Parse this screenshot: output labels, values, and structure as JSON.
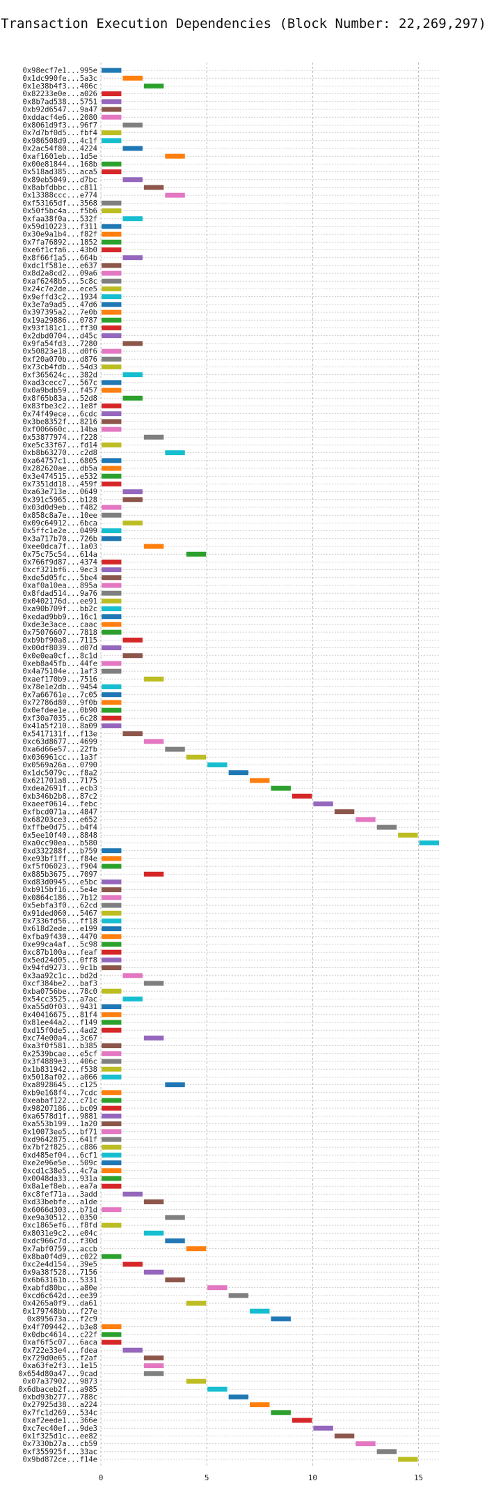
{
  "chart_data": {
    "type": "bar",
    "orientation": "horizontal-gantt",
    "title": "Transaction Execution Dependencies (Block Number: 22,269,297)",
    "xlabel": "",
    "ylabel": "",
    "xlim": [
      0,
      16
    ],
    "xticks": [
      0,
      5,
      10,
      15
    ],
    "grid": true,
    "colors": [
      "#1f77b4",
      "#ff7f0e",
      "#2ca02c",
      "#d62728",
      "#9467bd",
      "#8c564b",
      "#e377c2",
      "#7f7f7f",
      "#bcbd22",
      "#17becf"
    ],
    "rows": [
      {
        "label": "0x98ecf7e1...995e",
        "start": 0,
        "duration": 1
      },
      {
        "label": "0x1dc990fe...5a3c",
        "start": 1,
        "duration": 1
      },
      {
        "label": "0x1e38b4f3...406c",
        "start": 2,
        "duration": 1
      },
      {
        "label": "0x82233e0e...a026",
        "start": 0,
        "duration": 1
      },
      {
        "label": "0x8b7ad538...5751",
        "start": 0,
        "duration": 1
      },
      {
        "label": "0xb92d6547...9a47",
        "start": 0,
        "duration": 1
      },
      {
        "label": "0xddacf4e6...2080",
        "start": 0,
        "duration": 1
      },
      {
        "label": "0x8061d9f3...96f7",
        "start": 1,
        "duration": 1
      },
      {
        "label": "0x7d7bf0d5...fbf4",
        "start": 0,
        "duration": 1
      },
      {
        "label": "0x986508d9...4c1f",
        "start": 0,
        "duration": 1
      },
      {
        "label": "0x2ac54f80...4224",
        "start": 1,
        "duration": 1
      },
      {
        "label": "0xaf1601eb...1d5e",
        "start": 3,
        "duration": 1
      },
      {
        "label": "0x00e81844...168b",
        "start": 0,
        "duration": 1
      },
      {
        "label": "0x518ad385...aca5",
        "start": 0,
        "duration": 1
      },
      {
        "label": "0x89eb5049...d7bc",
        "start": 1,
        "duration": 1
      },
      {
        "label": "0x8abfdbbc...c811",
        "start": 2,
        "duration": 1
      },
      {
        "label": "0x13388ccc...e774",
        "start": 3,
        "duration": 1
      },
      {
        "label": "0xf53165df...3568",
        "start": 0,
        "duration": 1
      },
      {
        "label": "0x50f5bc4a...f5b6",
        "start": 0,
        "duration": 1
      },
      {
        "label": "0xfaa38f0a...532f",
        "start": 1,
        "duration": 1
      },
      {
        "label": "0x59d10223...f311",
        "start": 0,
        "duration": 1
      },
      {
        "label": "0x30e9a1b4...f82f",
        "start": 0,
        "duration": 1
      },
      {
        "label": "0x7fa76892...1852",
        "start": 0,
        "duration": 1
      },
      {
        "label": "0xe6f1cfa6...43b0",
        "start": 0,
        "duration": 1
      },
      {
        "label": "0x8f66f1a5...664b",
        "start": 1,
        "duration": 1
      },
      {
        "label": "0xdc1f581e...e637",
        "start": 0,
        "duration": 1
      },
      {
        "label": "0x8d2a8cd2...09a6",
        "start": 0,
        "duration": 1
      },
      {
        "label": "0xaf6248b5...5c8c",
        "start": 0,
        "duration": 1
      },
      {
        "label": "0x24c7e2de...ece5",
        "start": 0,
        "duration": 1
      },
      {
        "label": "0x9effd3c2...1934",
        "start": 0,
        "duration": 1
      },
      {
        "label": "0x3e7a9ad5...47d6",
        "start": 0,
        "duration": 1
      },
      {
        "label": "0x397395a2...7e0b",
        "start": 0,
        "duration": 1
      },
      {
        "label": "0x19a29886...0787",
        "start": 0,
        "duration": 1
      },
      {
        "label": "0x93f181c1...ff30",
        "start": 0,
        "duration": 1
      },
      {
        "label": "0x2dbd0704...d45c",
        "start": 0,
        "duration": 1
      },
      {
        "label": "0x9fa54fd3...7280",
        "start": 1,
        "duration": 1
      },
      {
        "label": "0x50823e18...d0f6",
        "start": 0,
        "duration": 1
      },
      {
        "label": "0xf20a070b...d876",
        "start": 0,
        "duration": 1
      },
      {
        "label": "0x73cb4fdb...54d3",
        "start": 0,
        "duration": 1
      },
      {
        "label": "0xf365624c...382d",
        "start": 1,
        "duration": 1
      },
      {
        "label": "0xad3cecc7...567c",
        "start": 0,
        "duration": 1
      },
      {
        "label": "0x0a9bdb59...f457",
        "start": 0,
        "duration": 1
      },
      {
        "label": "0x8f65b83a...52d8",
        "start": 1,
        "duration": 1
      },
      {
        "label": "0x83fbe3c2...1e8f",
        "start": 0,
        "duration": 1
      },
      {
        "label": "0x74f49ece...6cdc",
        "start": 0,
        "duration": 1
      },
      {
        "label": "0x3be8352f...8216",
        "start": 0,
        "duration": 1
      },
      {
        "label": "0xf006660c...14ba",
        "start": 0,
        "duration": 1
      },
      {
        "label": "0x53877974...f228",
        "start": 2,
        "duration": 1
      },
      {
        "label": "0xe5c33f67...fd14",
        "start": 0,
        "duration": 1
      },
      {
        "label": "0xb8b63270...c2d8",
        "start": 3,
        "duration": 1
      },
      {
        "label": "0xa64757c1...6805",
        "start": 0,
        "duration": 1
      },
      {
        "label": "0x282620ae...db5a",
        "start": 0,
        "duration": 1
      },
      {
        "label": "0x3e474515...e532",
        "start": 0,
        "duration": 1
      },
      {
        "label": "0x7351dd18...459f",
        "start": 0,
        "duration": 1
      },
      {
        "label": "0xa63e713e...0649",
        "start": 1,
        "duration": 1
      },
      {
        "label": "0x391c5965...b128",
        "start": 1,
        "duration": 1
      },
      {
        "label": "0x03d0d9eb...f482",
        "start": 0,
        "duration": 1
      },
      {
        "label": "0x858c8a7e...10ee",
        "start": 0,
        "duration": 1
      },
      {
        "label": "0x09c64912...6bca",
        "start": 1,
        "duration": 1
      },
      {
        "label": "0x5ffc1e2e...0499",
        "start": 0,
        "duration": 1
      },
      {
        "label": "0x3a717b70...726b",
        "start": 0,
        "duration": 1
      },
      {
        "label": "0xee0dca7f...1a03",
        "start": 2,
        "duration": 1
      },
      {
        "label": "0x75c75c54...614a",
        "start": 4,
        "duration": 1
      },
      {
        "label": "0x766f9d87...4374",
        "start": 0,
        "duration": 1
      },
      {
        "label": "0xcf321bf6...9ec3",
        "start": 0,
        "duration": 1
      },
      {
        "label": "0xde5d05fc...5be4",
        "start": 0,
        "duration": 1
      },
      {
        "label": "0xaf0a10ea...895a",
        "start": 0,
        "duration": 1
      },
      {
        "label": "0x8fdad514...9a76",
        "start": 0,
        "duration": 1
      },
      {
        "label": "0x0402176d...ee91",
        "start": 0,
        "duration": 1
      },
      {
        "label": "0xa90b709f...bb2c",
        "start": 0,
        "duration": 1
      },
      {
        "label": "0xedad9bb9...16c1",
        "start": 0,
        "duration": 1
      },
      {
        "label": "0xde3e3ace...caac",
        "start": 0,
        "duration": 1
      },
      {
        "label": "0x75076607...7818",
        "start": 0,
        "duration": 1
      },
      {
        "label": "0xb9bf90a8...7115",
        "start": 1,
        "duration": 1
      },
      {
        "label": "0x00df8039...d07d",
        "start": 0,
        "duration": 1
      },
      {
        "label": "0x0e0ea0cf...8c1d",
        "start": 1,
        "duration": 1
      },
      {
        "label": "0xeb8a45fb...44fe",
        "start": 0,
        "duration": 1
      },
      {
        "label": "0x4a75104e...1af3",
        "start": 0,
        "duration": 1
      },
      {
        "label": "0xaef170b9...7516",
        "start": 2,
        "duration": 1
      },
      {
        "label": "0x78e1e2db...9454",
        "start": 0,
        "duration": 1
      },
      {
        "label": "0x7a66761e...7c05",
        "start": 0,
        "duration": 1
      },
      {
        "label": "0x72786d80...9f0b",
        "start": 0,
        "duration": 1
      },
      {
        "label": "0x0efdee1e...0b90",
        "start": 0,
        "duration": 1
      },
      {
        "label": "0xf30a7035...6c28",
        "start": 0,
        "duration": 1
      },
      {
        "label": "0x41a5f210...8a09",
        "start": 0,
        "duration": 1
      },
      {
        "label": "0x5417131f...f13e",
        "start": 1,
        "duration": 1
      },
      {
        "label": "0xc63d8677...4699",
        "start": 2,
        "duration": 1
      },
      {
        "label": "0xa6d66e57...22fb",
        "start": 3,
        "duration": 1
      },
      {
        "label": "0x036961cc...1a3f",
        "start": 4,
        "duration": 1
      },
      {
        "label": "0x0569a26a...0790",
        "start": 5,
        "duration": 1
      },
      {
        "label": "0x1dc5079c...f8a2",
        "start": 6,
        "duration": 1
      },
      {
        "label": "0x621701a8...7175",
        "start": 7,
        "duration": 1
      },
      {
        "label": "0xdea2691f...ecb3",
        "start": 8,
        "duration": 1
      },
      {
        "label": "0xb346b2b8...87c2",
        "start": 9,
        "duration": 1
      },
      {
        "label": "0xaeef0614...febc",
        "start": 10,
        "duration": 1
      },
      {
        "label": "0xfbcd071a...4847",
        "start": 11,
        "duration": 1
      },
      {
        "label": "0x68203ce3...e652",
        "start": 12,
        "duration": 1
      },
      {
        "label": "0xffbe0d75...b4f4",
        "start": 13,
        "duration": 1
      },
      {
        "label": "0x5ee10f40...8848",
        "start": 14,
        "duration": 1
      },
      {
        "label": "0xa0cc90ea...b580",
        "start": 15,
        "duration": 1
      },
      {
        "label": "0xd332288f...b759",
        "start": 0,
        "duration": 1
      },
      {
        "label": "0xe93bf1ff...f84e",
        "start": 0,
        "duration": 1
      },
      {
        "label": "0xf5f06023...f904",
        "start": 0,
        "duration": 1
      },
      {
        "label": "0x885b3675...7097",
        "start": 2,
        "duration": 1
      },
      {
        "label": "0xd83d0945...e5bc",
        "start": 0,
        "duration": 1
      },
      {
        "label": "0xb915bf16...5e4e",
        "start": 0,
        "duration": 1
      },
      {
        "label": "0x0864c186...7b12",
        "start": 0,
        "duration": 1
      },
      {
        "label": "0x5ebfa3f0...62cd",
        "start": 0,
        "duration": 1
      },
      {
        "label": "0x91ded060...5467",
        "start": 0,
        "duration": 1
      },
      {
        "label": "0x7336fd56...ff18",
        "start": 0,
        "duration": 1
      },
      {
        "label": "0x618d2ede...e199",
        "start": 0,
        "duration": 1
      },
      {
        "label": "0xfba9f430...4470",
        "start": 0,
        "duration": 1
      },
      {
        "label": "0xe99ca4af...5c98",
        "start": 0,
        "duration": 1
      },
      {
        "label": "0xc87b100a...feaf",
        "start": 0,
        "duration": 1
      },
      {
        "label": "0x5ed24d05...0ff8",
        "start": 0,
        "duration": 1
      },
      {
        "label": "0x94fd9273...9c1b",
        "start": 0,
        "duration": 1
      },
      {
        "label": "0x3aa92c1c...bd2d",
        "start": 1,
        "duration": 1
      },
      {
        "label": "0xcf384be2...baf3",
        "start": 2,
        "duration": 1
      },
      {
        "label": "0xba0756be...78c0",
        "start": 0,
        "duration": 1
      },
      {
        "label": "0x54cc3525...a7ac",
        "start": 1,
        "duration": 1
      },
      {
        "label": "0xa55d0f03...9431",
        "start": 0,
        "duration": 1
      },
      {
        "label": "0x40416675...81f4",
        "start": 0,
        "duration": 1
      },
      {
        "label": "0x81ee44a2...f149",
        "start": 0,
        "duration": 1
      },
      {
        "label": "0xd15f0de5...4ad2",
        "start": 0,
        "duration": 1
      },
      {
        "label": "0xc74e00a4...3c67",
        "start": 2,
        "duration": 1
      },
      {
        "label": "0xa3f0f581...b385",
        "start": 0,
        "duration": 1
      },
      {
        "label": "0x2539bcae...e5cf",
        "start": 0,
        "duration": 1
      },
      {
        "label": "0x3f4889e3...406c",
        "start": 0,
        "duration": 1
      },
      {
        "label": "0x1b831942...f538",
        "start": 0,
        "duration": 1
      },
      {
        "label": "0x5018af02...a066",
        "start": 0,
        "duration": 1
      },
      {
        "label": "0xa8928645...c125",
        "start": 3,
        "duration": 1
      },
      {
        "label": "0xb9e168f4...7cdc",
        "start": 0,
        "duration": 1
      },
      {
        "label": "0xeabaf122...c71c",
        "start": 0,
        "duration": 1
      },
      {
        "label": "0x98207186...bc09",
        "start": 0,
        "duration": 1
      },
      {
        "label": "0xa6578d1f...9881",
        "start": 0,
        "duration": 1
      },
      {
        "label": "0xa553b199...1a20",
        "start": 0,
        "duration": 1
      },
      {
        "label": "0x10073ee5...bf71",
        "start": 0,
        "duration": 1
      },
      {
        "label": "0xd9642875...641f",
        "start": 0,
        "duration": 1
      },
      {
        "label": "0x7bf2f825...c886",
        "start": 0,
        "duration": 1
      },
      {
        "label": "0xd485ef04...6cf1",
        "start": 0,
        "duration": 1
      },
      {
        "label": "0xe2e96e5e...509c",
        "start": 0,
        "duration": 1
      },
      {
        "label": "0xcd1c38e5...4c7a",
        "start": 0,
        "duration": 1
      },
      {
        "label": "0x0048da33...931a",
        "start": 0,
        "duration": 1
      },
      {
        "label": "0x8a1ef8eb...ea7a",
        "start": 0,
        "duration": 1
      },
      {
        "label": "0xc8fef71a...3add",
        "start": 1,
        "duration": 1
      },
      {
        "label": "0xd33bebfe...a1de",
        "start": 2,
        "duration": 1
      },
      {
        "label": "0x6066d303...b71d",
        "start": 0,
        "duration": 1
      },
      {
        "label": "0xe9a30512...0350",
        "start": 3,
        "duration": 1
      },
      {
        "label": "0xc1865ef6...f8fd",
        "start": 0,
        "duration": 1
      },
      {
        "label": "0x8031e9c2...e04c",
        "start": 2,
        "duration": 1
      },
      {
        "label": "0xdc966c7d...f30d",
        "start": 3,
        "duration": 1
      },
      {
        "label": "0x7abf0759...accb",
        "start": 4,
        "duration": 1
      },
      {
        "label": "0x8ba0f4d9...c022",
        "start": 0,
        "duration": 1
      },
      {
        "label": "0xc2e4d154...39e5",
        "start": 1,
        "duration": 1
      },
      {
        "label": "0x9a38f528...7156",
        "start": 2,
        "duration": 1
      },
      {
        "label": "0x6b63161b...5331",
        "start": 3,
        "duration": 1
      },
      {
        "label": "0xabfd80bc...a80e",
        "start": 5,
        "duration": 1
      },
      {
        "label": "0xcd6c642d...ee39",
        "start": 6,
        "duration": 1
      },
      {
        "label": "0x4265a0f9...da61",
        "start": 4,
        "duration": 1
      },
      {
        "label": "0x179748bb...f27e",
        "start": 7,
        "duration": 1
      },
      {
        "label": "0x895673a...f2c9",
        "start": 8,
        "duration": 1
      },
      {
        "label": "0x4f709442...b3e8",
        "start": 0,
        "duration": 1
      },
      {
        "label": "0x0dbc4614...c22f",
        "start": 0,
        "duration": 1
      },
      {
        "label": "0xaf6f5c07...6aca",
        "start": 0,
        "duration": 1
      },
      {
        "label": "0x722e33e4...fdea",
        "start": 1,
        "duration": 1
      },
      {
        "label": "0x729d0e65...f2af",
        "start": 2,
        "duration": 1
      },
      {
        "label": "0xa63fe2f3...1e15",
        "start": 2,
        "duration": 1
      },
      {
        "label": "0x654d80a47...9cad",
        "start": 2,
        "duration": 1
      },
      {
        "label": "0x07a37902...9873",
        "start": 4,
        "duration": 1
      },
      {
        "label": "0x6dbaceb2f...a985",
        "start": 5,
        "duration": 1
      },
      {
        "label": "0xbd93b277...788c",
        "start": 6,
        "duration": 1
      },
      {
        "label": "0x27925d38...a224",
        "start": 7,
        "duration": 1
      },
      {
        "label": "0x7fc1d269...534c",
        "start": 8,
        "duration": 1
      },
      {
        "label": "0xaf2eede1...366e",
        "start": 9,
        "duration": 1
      },
      {
        "label": "0xc7ec40ef...9de3",
        "start": 10,
        "duration": 1
      },
      {
        "label": "0x1f325d1c...ee82",
        "start": 11,
        "duration": 1
      },
      {
        "label": "0x7330b27a...cb59",
        "start": 12,
        "duration": 1
      },
      {
        "label": "0xf355925f...33ac",
        "start": 13,
        "duration": 1
      },
      {
        "label": "0x9bd872ce...f14e",
        "start": 14,
        "duration": 1
      }
    ]
  }
}
